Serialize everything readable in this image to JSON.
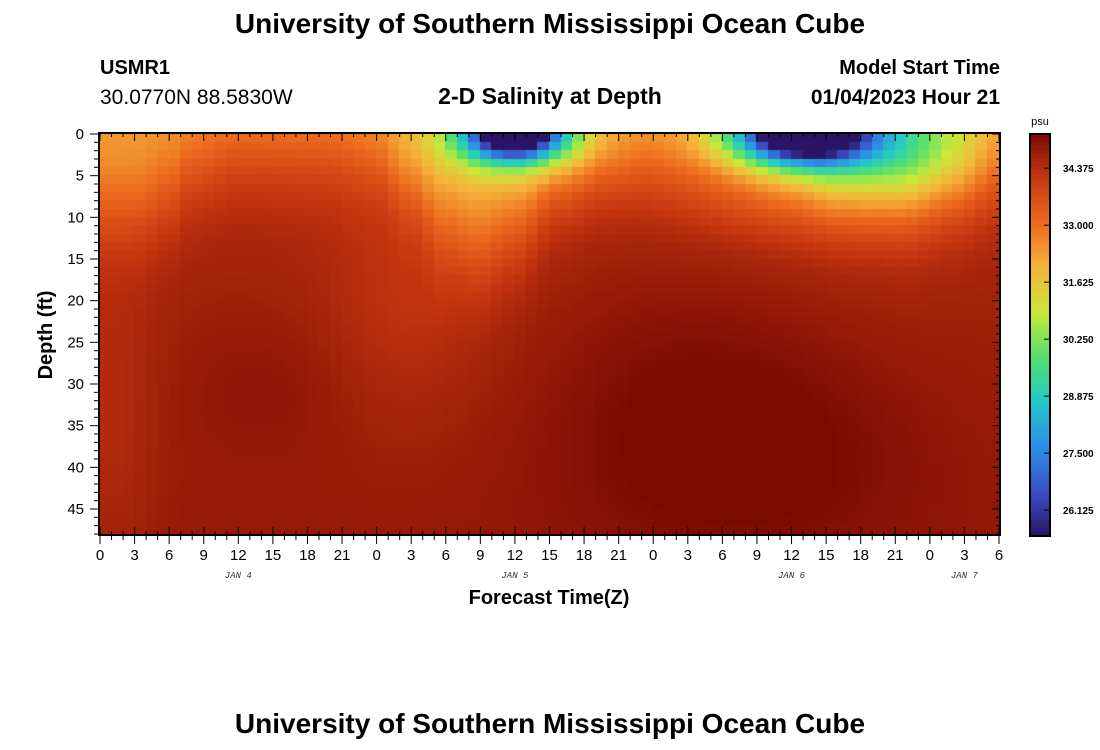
{
  "page": {
    "title_top": "University of Southern Mississippi Ocean Cube",
    "title_bottom": "University of Southern Mississippi Ocean Cube",
    "station_id": "USMR1",
    "station_coords": "30.0770N  88.5830W",
    "plot_title": "2-D Salinity at Depth",
    "model_label": "Model Start Time",
    "model_time": "01/04/2023 Hour 21"
  },
  "colors": {
    "background": "#ffffff",
    "text": "#000000",
    "colormap": [
      "#2a1565",
      "#3b4fc8",
      "#2c8fe6",
      "#22c8c8",
      "#52e070",
      "#c8e83a",
      "#f6b43a",
      "#ec6a1e",
      "#c83810",
      "#7a0a02"
    ]
  },
  "chart_data": {
    "type": "heatmap",
    "title": "2-D Salinity at Depth",
    "xlabel": "Forecast Time(Z)",
    "ylabel": "Depth (ft)",
    "x_unit": "hours since JAN 4 00Z",
    "xlim": [
      0,
      78
    ],
    "ylim": [
      0,
      48
    ],
    "y_inverted": true,
    "x_ticks": [
      0,
      3,
      6,
      9,
      12,
      15,
      18,
      21,
      24,
      27,
      30,
      33,
      36,
      39,
      42,
      45,
      48,
      51,
      54,
      57,
      60,
      63,
      66,
      69,
      72,
      75,
      78
    ],
    "x_tick_labels": [
      "0",
      "3",
      "6",
      "9",
      "12",
      "15",
      "18",
      "21",
      "0",
      "3",
      "6",
      "9",
      "12",
      "15",
      "18",
      "21",
      "0",
      "3",
      "6",
      "9",
      "12",
      "15",
      "18",
      "21",
      "0",
      "3",
      "6"
    ],
    "y_ticks": [
      0,
      5,
      10,
      15,
      20,
      25,
      30,
      35,
      40,
      45
    ],
    "y_tick_labels": [
      "0",
      "5",
      "10",
      "15",
      "20",
      "25",
      "30",
      "35",
      "40",
      "45"
    ],
    "day_labels": [
      {
        "text": "JAN 4",
        "x": 12
      },
      {
        "text": "JAN 5",
        "x": 36
      },
      {
        "text": "JAN 6",
        "x": 60
      },
      {
        "text": "JAN 7",
        "x": 75
      }
    ],
    "colorbar": {
      "unit": "psu",
      "min": 25.5,
      "max": 35.2,
      "ticks": [
        34.375,
        33.0,
        31.625,
        30.25,
        28.875,
        27.5,
        26.125
      ],
      "tick_labels": [
        "34.375",
        "33.000",
        "31.625",
        "30.250",
        "28.875",
        "27.500",
        "26.125"
      ]
    },
    "field": {
      "grid_dx_hours": 1,
      "grid_dz_ft": 1,
      "base_surface": 32.2,
      "deep_value": 34.7,
      "deep_gradient_per_ft": 0.006,
      "halocline_depth_knots": {
        "x": [
          0,
          3,
          6,
          8,
          12,
          16,
          20,
          24,
          27,
          30,
          33,
          36,
          40,
          44,
          48,
          52,
          56,
          60,
          64,
          67,
          70,
          74,
          78
        ],
        "z": [
          9,
          9,
          7,
          4,
          2,
          2,
          2,
          3,
          7,
          12,
          14,
          12,
          6,
          3,
          2,
          2,
          2,
          3,
          6,
          7,
          8,
          6,
          3
        ]
      },
      "halocline_width_ft": 3.5,
      "surface_anomalies": [
        {
          "x": 36,
          "z": 0,
          "sx": 3,
          "sz": 2.2,
          "amp": -8.0
        },
        {
          "x": 36,
          "z": 1,
          "sx": 6,
          "sz": 4.0,
          "amp": -1.5
        },
        {
          "x": 61,
          "z": 0,
          "sx": 4,
          "sz": 2.5,
          "amp": -8.5
        },
        {
          "x": 63,
          "z": 2,
          "sx": 8,
          "sz": 6,
          "amp": -2.3
        },
        {
          "x": 70,
          "z": 2,
          "sx": 5,
          "sz": 4,
          "amp": -1.2
        }
      ],
      "subsurface_anomalies": [
        {
          "x": 57,
          "z": 38,
          "sx": 10,
          "sz": 9,
          "amp": 0.45
        },
        {
          "x": 50,
          "z": 30,
          "sx": 8,
          "sz": 12,
          "amp": 0.25
        },
        {
          "x": 15,
          "z": 30,
          "sx": 6,
          "sz": 6,
          "amp": 0.2
        },
        {
          "x": 1,
          "z": 35,
          "sx": 3,
          "sz": 14,
          "amp": -0.35
        },
        {
          "x": 26,
          "z": 22,
          "sx": 5,
          "sz": 10,
          "amp": -0.4
        }
      ]
    }
  }
}
